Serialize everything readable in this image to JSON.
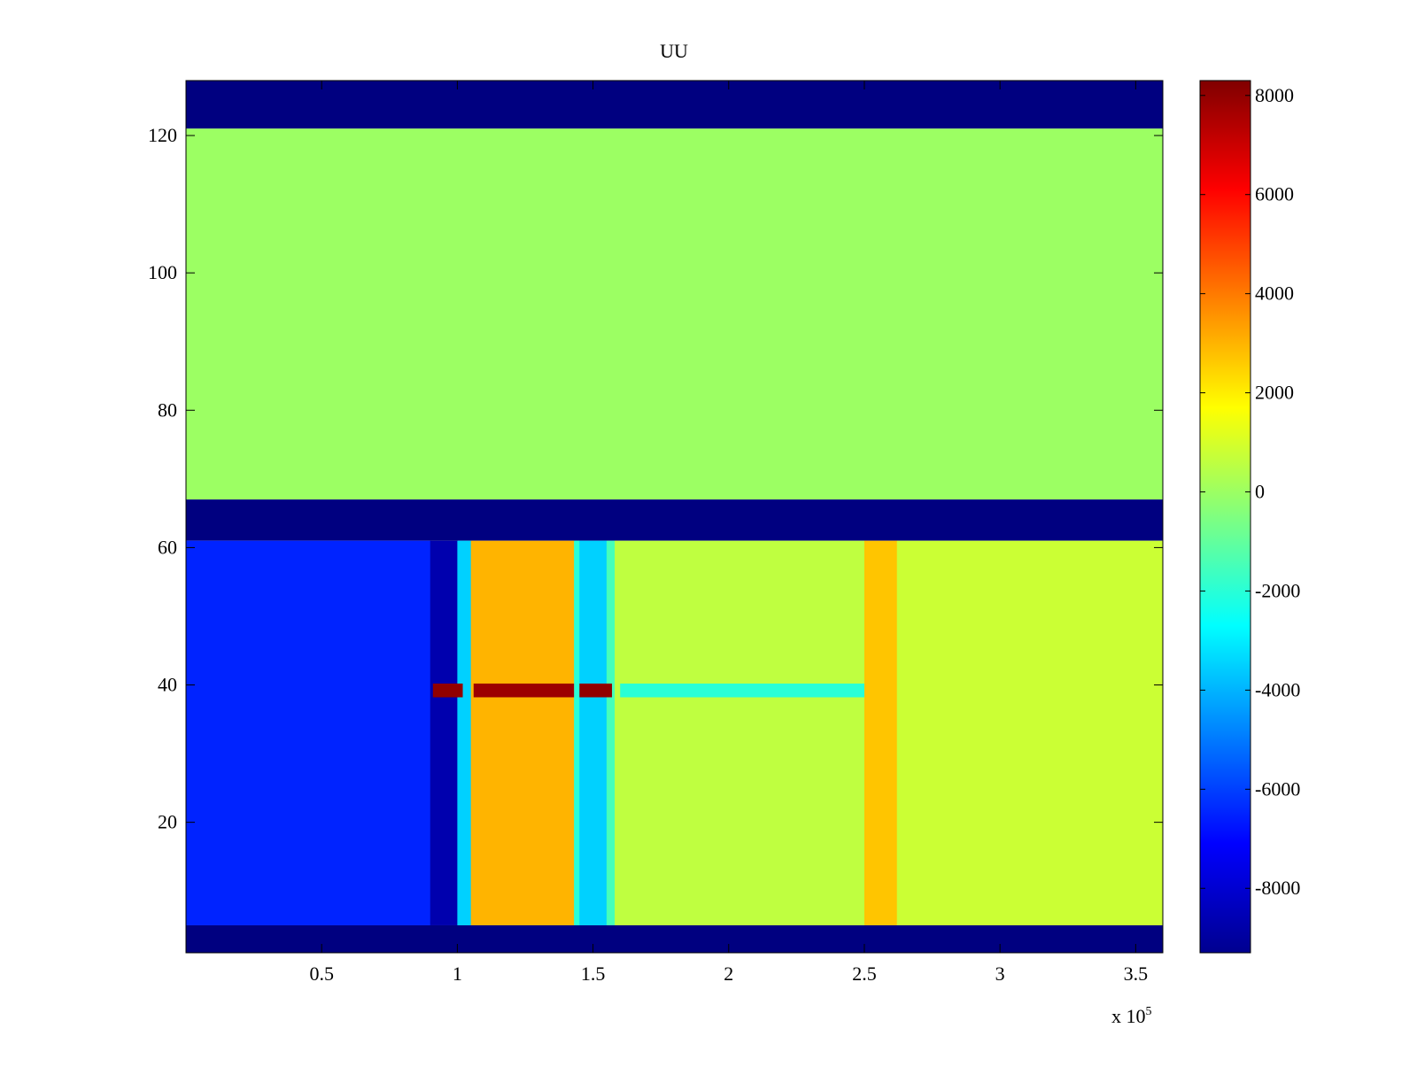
{
  "chart_data": {
    "type": "heatmap",
    "title": "UU",
    "xlabel": "",
    "ylabel": "",
    "x_multiplier_label": "x 10",
    "x_multiplier_exponent": "5",
    "xlim": [
      0,
      360000
    ],
    "ylim": [
      1,
      128
    ],
    "xticks": [
      50000,
      100000,
      150000,
      200000,
      250000,
      300000,
      350000
    ],
    "xtick_labels": [
      "0.5",
      "1",
      "1.5",
      "2",
      "2.5",
      "3",
      "3.5"
    ],
    "yticks": [
      20,
      40,
      60,
      80,
      100,
      120
    ],
    "ytick_labels": [
      "20",
      "40",
      "60",
      "80",
      "100",
      "120"
    ],
    "colormap": "jet",
    "clim": [
      -9300,
      8300
    ],
    "colorbar_ticks": [
      8000,
      6000,
      4000,
      2000,
      0,
      -2000,
      -4000,
      -6000,
      -8000
    ],
    "colorbar_labels": [
      "8000",
      "6000",
      "4000",
      "2000",
      "0",
      "-2000",
      "-4000",
      "-6000",
      "-8000"
    ],
    "grid": false,
    "row_bands": [
      {
        "y": [
          121,
          128
        ],
        "value": -9300
      },
      {
        "y": [
          67,
          121
        ],
        "value": 0
      },
      {
        "y": [
          61,
          67
        ],
        "value": -9300
      },
      {
        "y": [
          5,
          61
        ],
        "value": "profile"
      },
      {
        "y": [
          1,
          5
        ],
        "value": -9300
      }
    ],
    "column_profile": [
      {
        "x": [
          0,
          90000
        ],
        "value": -6500
      },
      {
        "x": [
          90000,
          100000
        ],
        "value": -8500
      },
      {
        "x": [
          100000,
          105000
        ],
        "value": -3500
      },
      {
        "x": [
          105000,
          143000
        ],
        "value": 3000
      },
      {
        "x": [
          143000,
          145000
        ],
        "value": -2000
      },
      {
        "x": [
          145000,
          155000
        ],
        "value": -3500
      },
      {
        "x": [
          155000,
          158000
        ],
        "value": -1500
      },
      {
        "x": [
          158000,
          250000
        ],
        "value": 600
      },
      {
        "x": [
          250000,
          262000
        ],
        "value": 2700
      },
      {
        "x": [
          262000,
          360000
        ],
        "value": 800
      }
    ],
    "row_39_segments": [
      {
        "x": [
          91000,
          102000
        ],
        "value": 8000
      },
      {
        "x": [
          106000,
          143000
        ],
        "value": 7800
      },
      {
        "x": [
          145000,
          157000
        ],
        "value": 8000
      },
      {
        "x": [
          160000,
          250000
        ],
        "value": -2000
      }
    ]
  }
}
